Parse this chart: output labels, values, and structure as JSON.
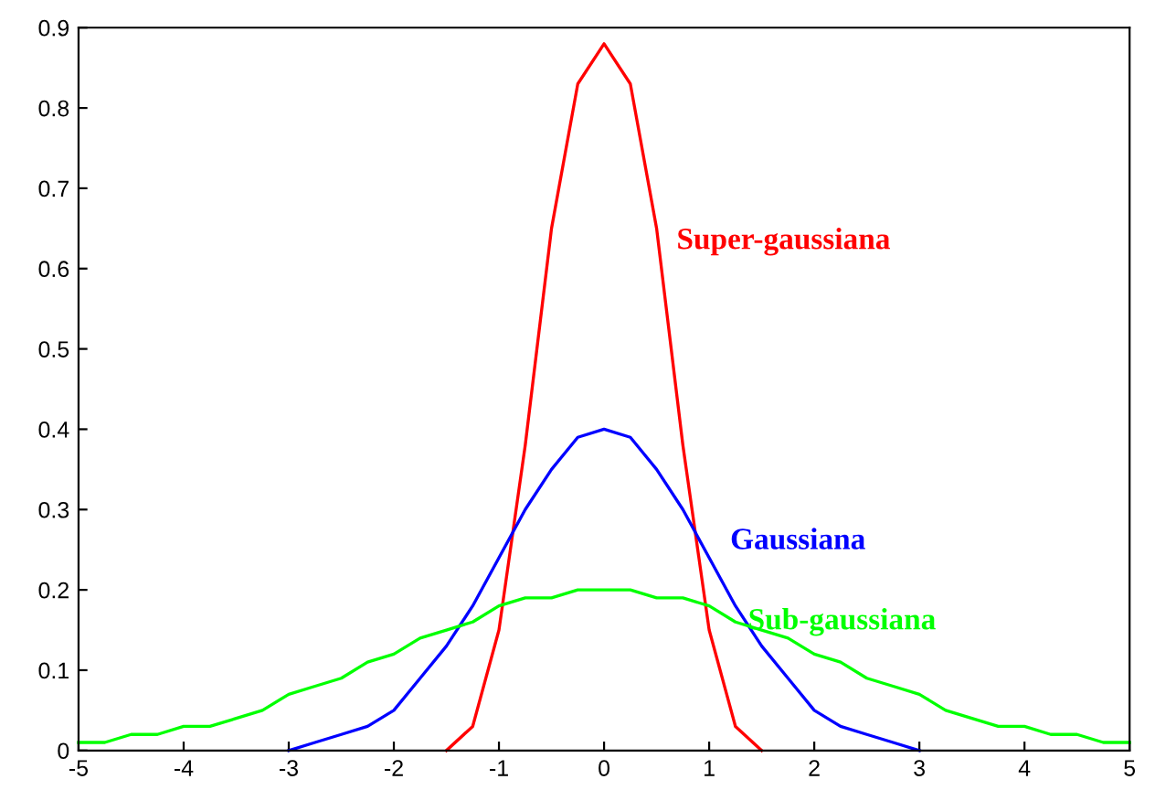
{
  "chart_data": {
    "type": "line",
    "x": [
      -5,
      -4.75,
      -4.5,
      -4.25,
      -4,
      -3.75,
      -3.5,
      -3.25,
      -3,
      -2.75,
      -2.5,
      -2.25,
      -2,
      -1.75,
      -1.5,
      -1.25,
      -1,
      -0.75,
      -0.5,
      -0.25,
      0,
      0.25,
      0.5,
      0.75,
      1,
      1.25,
      1.5,
      1.75,
      2,
      2.25,
      2.5,
      2.75,
      3,
      3.25,
      3.5,
      3.75,
      4,
      4.25,
      4.5,
      4.75,
      5
    ],
    "series": [
      {
        "name": "Super-gaussiana",
        "color": "#ff0000",
        "x": [
          -1.5,
          -1.25,
          -1,
          -0.75,
          -0.5,
          -0.25,
          0,
          0.25,
          0.5,
          0.75,
          1,
          1.25,
          1.5
        ],
        "values": [
          0,
          0.03,
          0.15,
          0.38,
          0.65,
          0.83,
          0.88,
          0.83,
          0.65,
          0.38,
          0.15,
          0.03,
          0
        ]
      },
      {
        "name": "Gaussiana",
        "color": "#0000ff",
        "x": [
          -3,
          -2.75,
          -2.5,
          -2.25,
          -2,
          -1.75,
          -1.5,
          -1.25,
          -1,
          -0.75,
          -0.5,
          -0.25,
          0,
          0.25,
          0.5,
          0.75,
          1,
          1.25,
          1.5,
          1.75,
          2,
          2.25,
          2.5,
          2.75,
          3
        ],
        "values": [
          0,
          0.01,
          0.02,
          0.03,
          0.05,
          0.09,
          0.13,
          0.18,
          0.24,
          0.3,
          0.35,
          0.39,
          0.4,
          0.39,
          0.35,
          0.3,
          0.24,
          0.18,
          0.13,
          0.09,
          0.05,
          0.03,
          0.02,
          0.01,
          0
        ]
      },
      {
        "name": "Sub-gaussiana",
        "color": "#00ff00",
        "values": [
          0.01,
          0.01,
          0.02,
          0.02,
          0.03,
          0.03,
          0.04,
          0.05,
          0.07,
          0.08,
          0.09,
          0.11,
          0.12,
          0.14,
          0.15,
          0.16,
          0.18,
          0.19,
          0.19,
          0.2,
          0.2,
          0.2,
          0.19,
          0.19,
          0.18,
          0.16,
          0.15,
          0.14,
          0.12,
          0.11,
          0.09,
          0.08,
          0.07,
          0.05,
          0.04,
          0.03,
          0.03,
          0.02,
          0.02,
          0.01,
          0.01
        ]
      }
    ],
    "xlim": [
      -5,
      5
    ],
    "ylim": [
      0,
      0.9
    ],
    "xticks": [
      -5,
      -4,
      -3,
      -2,
      -1,
      0,
      1,
      2,
      3,
      4,
      5
    ],
    "yticks": [
      0,
      0.1,
      0.2,
      0.3,
      0.4,
      0.5,
      0.6,
      0.7,
      0.8,
      0.9
    ],
    "grid": false,
    "legend": false,
    "marker": "none",
    "line_style": "solid"
  }
}
